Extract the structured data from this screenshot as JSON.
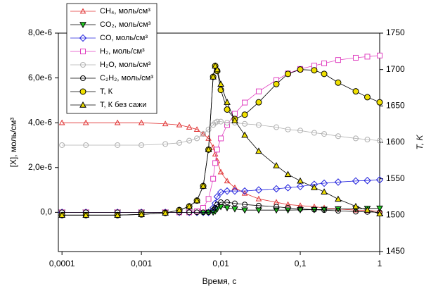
{
  "chart_data": {
    "type": "line",
    "x_label": "Время, с",
    "y_label": "[X], моль/см³",
    "y2_label": "T, K",
    "xlog": true,
    "xlim": [
      9e-05,
      1
    ],
    "xticks": [
      {
        "value": 0.0001,
        "label": "0,0001"
      },
      {
        "value": 0.001,
        "label": "0,001"
      },
      {
        "value": 0.01,
        "label": "0,01"
      },
      {
        "value": 0.1,
        "label": "0,1"
      },
      1
    ],
    "ylim": [
      -1.75e-06,
      8e-06
    ],
    "yticks": [
      {
        "value": 0,
        "label": "0,0"
      },
      {
        "value": 2e-06,
        "label": "2,0e-6"
      },
      {
        "value": 4e-06,
        "label": "4,0e-6"
      },
      {
        "value": 6e-06,
        "label": "6,0e-6"
      },
      {
        "value": 8e-06,
        "label": "8,0e-6"
      }
    ],
    "y2lim": [
      1450,
      1750
    ],
    "y2ticks": [
      1450,
      1500,
      1550,
      1600,
      1650,
      1700,
      1750
    ],
    "legend": "upper left",
    "x": [
      0.0001,
      0.0002,
      0.0005,
      0.001,
      0.002,
      0.003,
      0.004,
      0.005,
      0.006,
      0.007,
      0.008,
      0.0085,
      0.009,
      0.01,
      0.012,
      0.015,
      0.02,
      0.03,
      0.05,
      0.07,
      0.1,
      0.15,
      0.2,
      0.3,
      0.5,
      0.7,
      1
    ],
    "series": [
      {
        "name": "CH₄, моль/см³",
        "color": "#e03030",
        "marker": "triangle",
        "filled": false,
        "values": [
          4e-06,
          4e-06,
          4e-06,
          4e-06,
          3.95e-06,
          3.9e-06,
          3.8e-06,
          3.7e-06,
          3.5e-06,
          3.3e-06,
          2.9e-06,
          2.6e-06,
          2.3e-06,
          1.8e-06,
          1.4e-06,
          1.1e-06,
          8.5e-07,
          6e-07,
          4.5e-07,
          3.5e-07,
          3e-07,
          2.5e-07,
          2e-07,
          1.5e-07,
          1e-07,
          8e-08,
          5e-08
        ]
      },
      {
        "name": "CO₂, моль/см³",
        "color": "#22cc22",
        "marker": "triangle-down",
        "filled": true,
        "values": [
          0,
          0,
          0,
          0,
          0,
          0,
          0,
          0,
          0,
          0,
          0,
          5e-08,
          1.5e-07,
          2.5e-07,
          2e-07,
          1.5e-07,
          1e-07,
          1e-07,
          1e-07,
          1e-07,
          1.1e-07,
          1.2e-07,
          1.3e-07,
          1.5e-07,
          1.6e-07,
          1.7e-07,
          1.8e-07
        ]
      },
      {
        "name": "CO, моль/см³",
        "color": "#2020dd",
        "marker": "diamond",
        "filled": false,
        "values": [
          0,
          0,
          0,
          0,
          0,
          0,
          0,
          0,
          0,
          0,
          2e-07,
          4e-07,
          7e-07,
          9e-07,
          9.5e-07,
          9.5e-07,
          9.5e-07,
          1e-06,
          1.05e-06,
          1.1e-06,
          1.15e-06,
          1.25e-06,
          1.3e-06,
          1.35e-06,
          1.4e-06,
          1.42e-06,
          1.45e-06
        ]
      },
      {
        "name": "H₂, моль/см³",
        "color": "#e040c0",
        "marker": "square",
        "filled": false,
        "values": [
          0,
          0,
          0,
          0,
          0,
          0,
          0,
          5e-08,
          2e-07,
          6e-07,
          1.5e-06,
          2.2e-06,
          2.8e-06,
          3.3e-06,
          3.9e-06,
          4.4e-06,
          4.9e-06,
          5.4e-06,
          5.9e-06,
          6.2e-06,
          6.4e-06,
          6.55e-06,
          6.65e-06,
          6.8e-06,
          6.9e-06,
          6.95e-06,
          7e-06
        ]
      },
      {
        "name": "H₂O, моль/см³",
        "color": "#b0b0b0",
        "marker": "circle",
        "filled": false,
        "values": [
          3e-06,
          3e-06,
          3e-06,
          3e-06,
          3.05e-06,
          3.1e-06,
          3.2e-06,
          3.3e-06,
          3.5e-06,
          3.7e-06,
          3.9e-06,
          4e-06,
          4.05e-06,
          4.05e-06,
          4e-06,
          4e-06,
          3.95e-06,
          3.9e-06,
          3.8e-06,
          3.7e-06,
          3.65e-06,
          3.55e-06,
          3.5e-06,
          3.4e-06,
          3.3e-06,
          3.25e-06,
          3.2e-06
        ]
      },
      {
        "name": "C₂H₂, моль/см³",
        "color": "#000000",
        "marker": "circle",
        "filled": false,
        "values": [
          0,
          0,
          0,
          0,
          0,
          0,
          0,
          0,
          0,
          0,
          1e-07,
          2e-07,
          3.5e-07,
          4.5e-07,
          4.5e-07,
          4e-07,
          3.5e-07,
          3e-07,
          2.5e-07,
          2e-07,
          1.5e-07,
          1.2e-07,
          1e-07,
          7e-08,
          3e-08,
          2e-08,
          0
        ]
      },
      {
        "name": "T, К",
        "color": "#f0e000",
        "marker": "circle",
        "filled": true,
        "axis": "y2",
        "values": [
          1500,
          1500,
          1500,
          1501,
          1503,
          1507,
          1512,
          1520,
          1540,
          1590,
          1690,
          1705,
          1698,
          1672,
          1645,
          1632,
          1638,
          1655,
          1680,
          1694,
          1700,
          1699,
          1694,
          1682,
          1670,
          1662,
          1655
        ]
      },
      {
        "name": "T, К без сажи",
        "color": "#f0e000",
        "marker": "triangle",
        "filled": true,
        "axis": "y2",
        "values": [
          1500,
          1500,
          1500,
          1501,
          1503,
          1507,
          1512,
          1520,
          1540,
          1590,
          1690,
          1705,
          1700,
          1680,
          1655,
          1630,
          1610,
          1588,
          1568,
          1556,
          1547,
          1538,
          1532,
          1522,
          1512,
          1507,
          1502
        ]
      }
    ]
  }
}
